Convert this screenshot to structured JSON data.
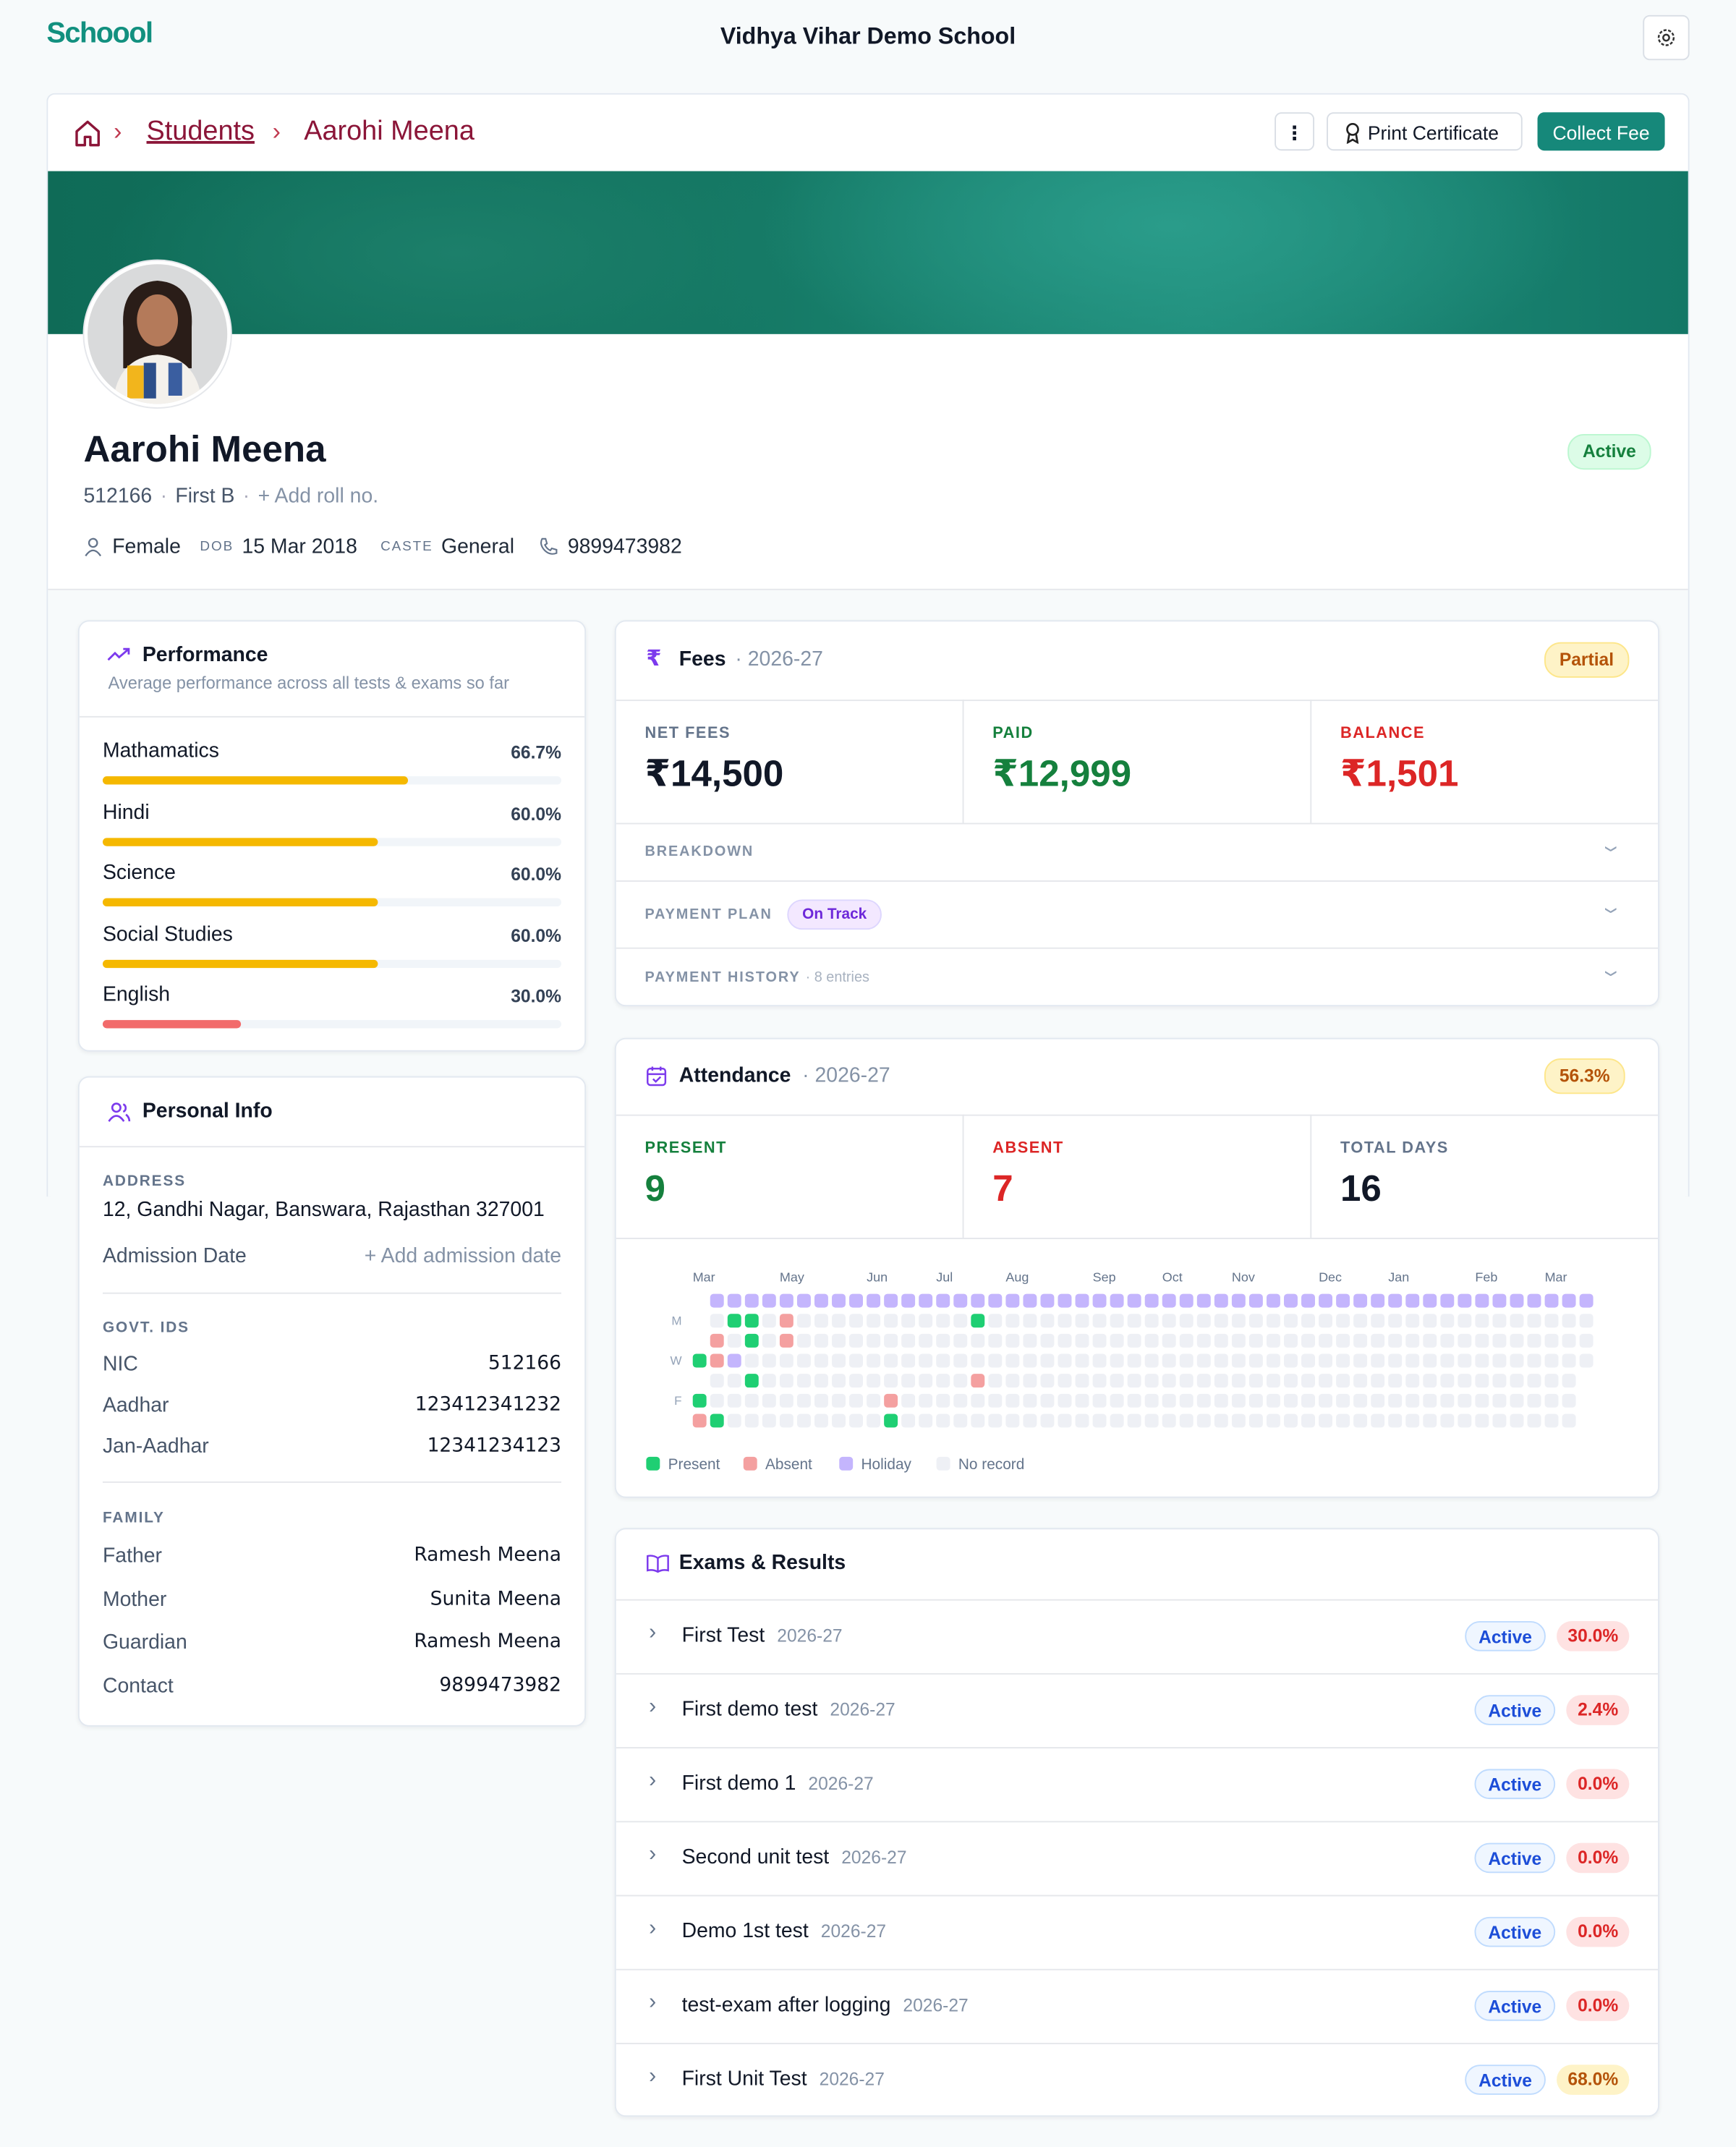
{
  "header": {
    "logo": "Schoool",
    "school_name": "Vidhya Vihar Demo School"
  },
  "breadcrumb": {
    "students": "Students",
    "current": "Aarohi Meena"
  },
  "actions": {
    "print_certificate": "Print Certificate",
    "collect_fee": "Collect Fee"
  },
  "profile": {
    "name": "Aarohi Meena",
    "status": "Active",
    "admission_no": "512166",
    "class": "First B",
    "add_roll": "+ Add roll no.",
    "gender": "Female",
    "dob_label": "DOB",
    "dob": "15 Mar 2018",
    "caste_label": "CASTE",
    "caste": "General",
    "phone": "9899473982"
  },
  "performance": {
    "title": "Performance",
    "subtitle": "Average performance across all tests & exams so far",
    "subjects": [
      {
        "name": "Mathamatics",
        "value": 66.7,
        "value_label": "66.7%",
        "color": "#f5b800"
      },
      {
        "name": "Hindi",
        "value": 60,
        "value_label": "60.0%",
        "color": "#f5b800"
      },
      {
        "name": "Science",
        "value": 60,
        "value_label": "60.0%",
        "color": "#f5b800"
      },
      {
        "name": "Social Studies",
        "value": 60,
        "value_label": "60.0%",
        "color": "#f5b800"
      },
      {
        "name": "English",
        "value": 30,
        "value_label": "30.0%",
        "color": "#f26b6b"
      }
    ]
  },
  "personal_info": {
    "title": "Personal Info",
    "address_label": "ADDRESS",
    "address": "12, Gandhi Nagar, Banswara, Rajasthan 327001",
    "admission_date_label": "Admission Date",
    "add_admission_date": "+ Add admission date",
    "govt_ids_label": "GOVT. IDS",
    "govt_ids": [
      [
        "NIC",
        "512166"
      ],
      [
        "Aadhar",
        "123412341232"
      ],
      [
        "Jan-Aadhar",
        "12341234123"
      ]
    ],
    "family_label": "FAMILY",
    "family": [
      [
        "Father",
        "Ramesh Meena"
      ],
      [
        "Mother",
        "Sunita Meena"
      ],
      [
        "Guardian",
        "Ramesh Meena"
      ],
      [
        "Contact",
        "9899473982"
      ]
    ]
  },
  "fees": {
    "title": "Fees",
    "year": "· 2026-27",
    "status": "Partial",
    "stats": [
      [
        "NET FEES",
        "₹14,500"
      ],
      [
        "PAID",
        "₹12,999"
      ],
      [
        "BALANCE",
        "₹1,501"
      ]
    ],
    "breakdown": "BREAKDOWN",
    "payment_plan": "PAYMENT PLAN",
    "plan_status": "On Track",
    "payment_history": "PAYMENT HISTORY",
    "history_count": "· 8 entries"
  },
  "attendance": {
    "title": "Attendance",
    "year": "· 2026-27",
    "rate": "56.3%",
    "stats": [
      [
        "PRESENT",
        "9"
      ],
      [
        "ABSENT",
        "7"
      ],
      [
        "TOTAL DAYS",
        "16"
      ]
    ],
    "heatmap": {
      "month_labels": [
        "Mar",
        null,
        null,
        null,
        null,
        "May",
        null,
        null,
        null,
        null,
        "Jun",
        null,
        null,
        null,
        "Jul",
        null,
        null,
        null,
        "Aug",
        null,
        null,
        null,
        null,
        "Sep",
        null,
        null,
        null,
        "Oct",
        null,
        null,
        null,
        "Nov",
        null,
        null,
        null,
        null,
        "Dec",
        null,
        null,
        null,
        "Jan",
        null,
        null,
        null,
        null,
        "Feb",
        null,
        null,
        null,
        "Mar",
        null,
        null
      ],
      "row_labels": [
        null,
        "M",
        null,
        "W",
        null,
        "F",
        null
      ],
      "row_spans": [
        [
          1,
          51
        ],
        [
          1,
          51
        ],
        [
          1,
          51
        ],
        [
          0,
          51
        ],
        [
          1,
          50
        ],
        [
          0,
          50
        ],
        [
          0,
          50
        ]
      ],
      "holiday_rows": [
        0
      ],
      "holiday": [
        [
          3,
          2
        ]
      ],
      "present": [
        [
          1,
          2
        ],
        [
          1,
          3
        ],
        [
          1,
          16
        ],
        [
          2,
          3
        ],
        [
          3,
          0
        ],
        [
          4,
          3
        ],
        [
          5,
          0
        ],
        [
          6,
          1
        ],
        [
          6,
          11
        ]
      ],
      "absent": [
        [
          1,
          5
        ],
        [
          2,
          1
        ],
        [
          2,
          5
        ],
        [
          3,
          1
        ],
        [
          4,
          16
        ],
        [
          5,
          11
        ],
        [
          6,
          0
        ]
      ]
    },
    "legend": [
      "Present",
      "Absent",
      "Holiday",
      "No record"
    ]
  },
  "exams": {
    "title": "Exams & Results",
    "items": [
      {
        "name": "First Test",
        "year": "2026-27",
        "status": "Active",
        "score": "30.0%"
      },
      {
        "name": "First demo test",
        "year": "2026-27",
        "status": "Active",
        "score": "2.4%"
      },
      {
        "name": "First demo 1",
        "year": "2026-27",
        "status": "Active",
        "score": "0.0%"
      },
      {
        "name": "Second unit test",
        "year": "2026-27",
        "status": "Active",
        "score": "0.0%"
      },
      {
        "name": "Demo 1st test",
        "year": "2026-27",
        "status": "Active",
        "score": "0.0%"
      },
      {
        "name": "test-exam after logging",
        "year": "2026-27",
        "status": "Active",
        "score": "0.0%"
      },
      {
        "name": "First Unit Test",
        "year": "2026-27",
        "status": "Active",
        "score": "68.0%"
      }
    ]
  }
}
